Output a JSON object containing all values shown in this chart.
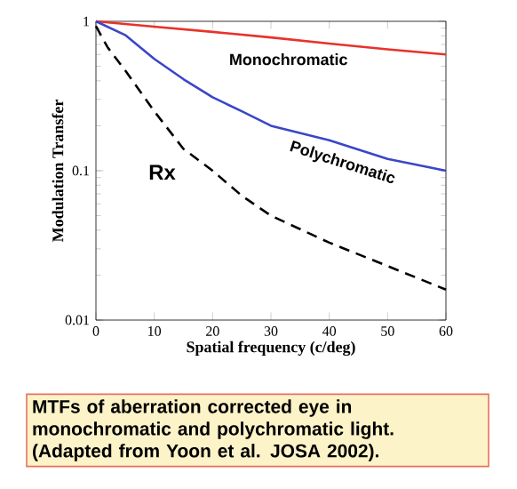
{
  "chart_data": {
    "type": "line",
    "xlabel": "Spatial frequency (c/deg)",
    "ylabel": "Modulation Transfer",
    "log": "y",
    "xlim": [
      0,
      60
    ],
    "xticks": [
      0,
      10,
      20,
      30,
      40,
      50,
      60
    ],
    "ylim": [
      0.01,
      1
    ],
    "yticks": [
      0.01,
      0.1,
      1
    ],
    "marker": "none",
    "series": [
      {
        "name": "Monochromatic",
        "color": "#e8322a",
        "x": [
          0,
          10,
          20,
          30,
          40,
          50,
          60
        ],
        "values": [
          1,
          0.92,
          0.85,
          0.78,
          0.71,
          0.65,
          0.6
        ],
        "line_style": "solid"
      },
      {
        "name": "Polychromatic",
        "color": "#3a46c8",
        "x": [
          0,
          5,
          10,
          15,
          20,
          25,
          30,
          40,
          50,
          60
        ],
        "values": [
          1,
          0.81,
          0.56,
          0.41,
          0.31,
          0.25,
          0.2,
          0.16,
          0.12,
          0.1
        ],
        "line_style": "solid"
      },
      {
        "name": "Rx",
        "color": "#000000",
        "x": [
          0,
          2,
          5,
          10,
          15,
          20,
          25,
          30,
          40,
          50,
          60
        ],
        "values": [
          0.93,
          0.67,
          0.47,
          0.25,
          0.14,
          0.1,
          0.068,
          0.05,
          0.033,
          0.023,
          0.016
        ],
        "line_style": "dashed"
      }
    ],
    "annotations": [
      "MTFs of aberration corrected eye in monochromatic and polychromatic light. (Adapted from Yoon et al. JOSA 2002)."
    ]
  }
}
